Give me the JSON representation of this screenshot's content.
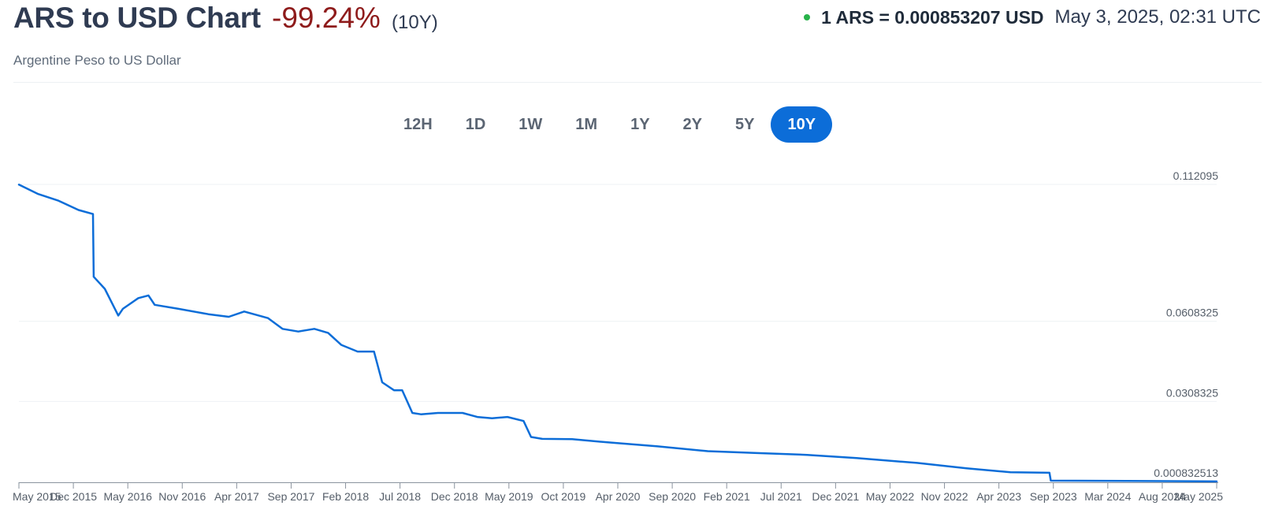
{
  "header": {
    "title": "ARS to USD Chart",
    "change": "-99.24%",
    "period": "(10Y)",
    "subtitle": "Argentine Peso to US Dollar",
    "rate": "1 ARS = 0.000853207 USD",
    "timestamp": "May 3, 2025, 02:31 UTC"
  },
  "tabs": [
    {
      "label": "12H",
      "active": false
    },
    {
      "label": "1D",
      "active": false
    },
    {
      "label": "1W",
      "active": false
    },
    {
      "label": "1M",
      "active": false
    },
    {
      "label": "1Y",
      "active": false
    },
    {
      "label": "2Y",
      "active": false
    },
    {
      "label": "5Y",
      "active": false
    },
    {
      "label": "10Y",
      "active": true
    }
  ],
  "colors": {
    "line": "#0c6dd8",
    "accent": "#0c6dd8",
    "negative": "#8e1b1b",
    "live_dot": "#28b34a"
  },
  "chart_data": {
    "type": "line",
    "title": "",
    "xlabel": "",
    "ylabel": "",
    "x_tick_labels": [
      "May 2015",
      "Dec 2015",
      "May 2016",
      "Nov 2016",
      "Apr 2017",
      "Sep 2017",
      "Feb 2018",
      "Jul 2018",
      "Dec 2018",
      "May 2019",
      "Oct 2019",
      "Apr 2020",
      "Sep 2020",
      "Feb 2021",
      "Jul 2021",
      "Dec 2021",
      "May 2022",
      "Nov 2022",
      "Apr 2023",
      "Sep 2023",
      "Mar 2024",
      "Aug 2024",
      "May 2025"
    ],
    "y_tick_labels": [
      "0.112095",
      "0.0608325",
      "0.0308325",
      "0.000832513"
    ],
    "y_ticks": [
      0.112095,
      0.0608325,
      0.0308325,
      0.000832513
    ],
    "ylim": [
      0.000832513,
      0.112095
    ],
    "grid": true,
    "series": [
      {
        "x": [
          "2015-05-03",
          "2015-07-01",
          "2015-09-01",
          "2015-11-01",
          "2015-12-15",
          "2015-12-17",
          "2016-01-20",
          "2016-03-01",
          "2016-03-15",
          "2016-05-01",
          "2016-06-01",
          "2016-06-20",
          "2016-09-01",
          "2016-12-01",
          "2017-02-01",
          "2017-03-20",
          "2017-06-01",
          "2017-07-15",
          "2017-09-01",
          "2017-10-20",
          "2017-12-01",
          "2018-01-10",
          "2018-03-01",
          "2018-04-20",
          "2018-05-15",
          "2018-06-20",
          "2018-07-15",
          "2018-08-15",
          "2018-09-10",
          "2018-11-01",
          "2019-01-15",
          "2019-03-01",
          "2019-04-15",
          "2019-06-01",
          "2019-07-20",
          "2019-08-12",
          "2019-09-15",
          "2019-12-15",
          "2020-04-01",
          "2020-09-01",
          "2021-02-01",
          "2021-07-01",
          "2021-12-01",
          "2022-05-01",
          "2022-11-01",
          "2023-04-01",
          "2023-08-13",
          "2023-12-10",
          "2023-12-14",
          "2024-03-01",
          "2024-08-01",
          "2025-05-03"
        ],
        "y": [
          0.112,
          0.1085,
          0.106,
          0.1025,
          0.101,
          0.0775,
          0.073,
          0.063,
          0.0655,
          0.0695,
          0.0705,
          0.067,
          0.0655,
          0.0635,
          0.0625,
          0.0645,
          0.062,
          0.058,
          0.057,
          0.058,
          0.0565,
          0.052,
          0.0495,
          0.0495,
          0.038,
          0.035,
          0.035,
          0.0265,
          0.026,
          0.0265,
          0.0265,
          0.025,
          0.0245,
          0.025,
          0.0235,
          0.0175,
          0.0168,
          0.0167,
          0.0155,
          0.014,
          0.0122,
          0.0115,
          0.0108,
          0.0096,
          0.0078,
          0.0058,
          0.0043,
          0.0041,
          0.00115,
          0.00112,
          0.00105,
          0.000853
        ]
      }
    ]
  }
}
